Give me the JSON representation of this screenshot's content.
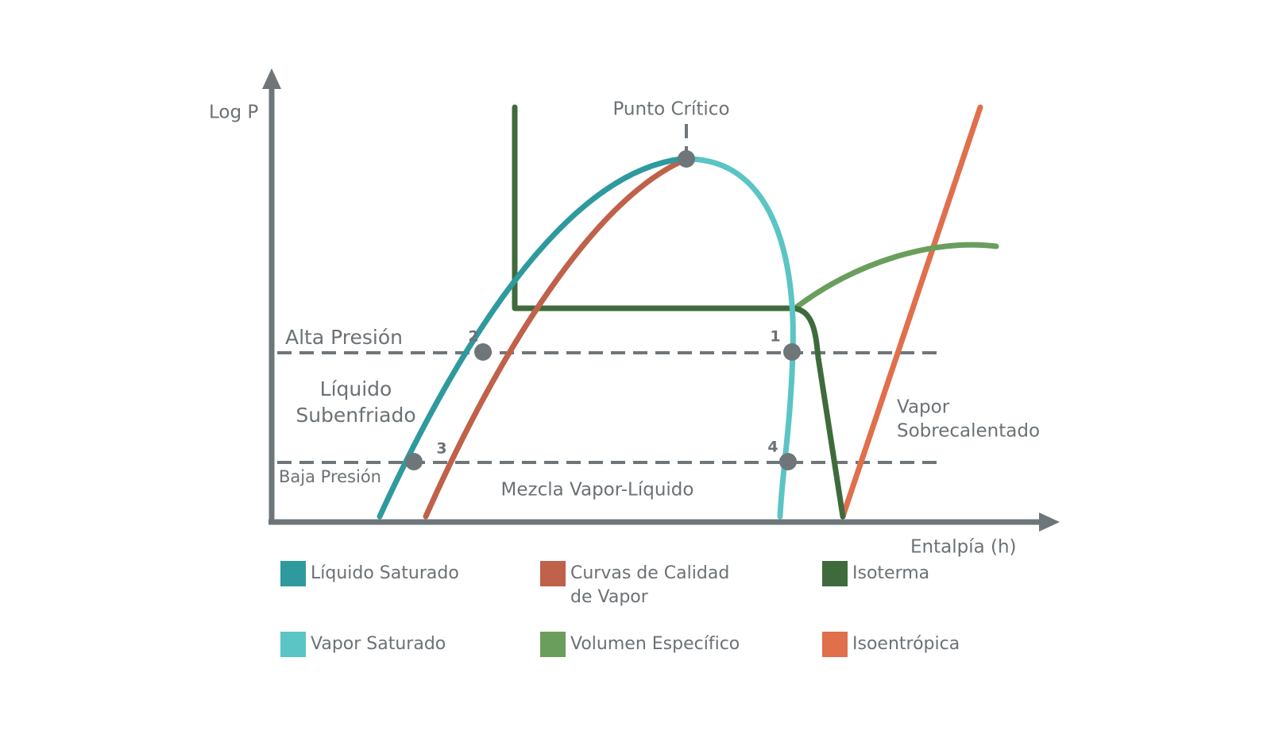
{
  "axes": {
    "y_label": "Log P",
    "x_label": "Entalpía (h)"
  },
  "annotations": {
    "critical_point": "Punto Crítico",
    "high_pressure": "Alta Presión",
    "low_pressure": "Baja Presión",
    "subcooled_liquid": [
      "Líquido",
      "Subenfriado"
    ],
    "mixture": "Mezcla Vapor-Líquido",
    "superheated_vapor": [
      "Vapor",
      "Sobrecalentado"
    ]
  },
  "points": [
    "1",
    "2",
    "3",
    "4"
  ],
  "legend": [
    {
      "label": [
        "Líquido Saturado"
      ],
      "color": "#2e9a9e"
    },
    {
      "label": [
        "Curvas de Calidad",
        "de Vapor"
      ],
      "color": "#c0614a"
    },
    {
      "label": [
        "Isoterma"
      ],
      "color": "#3f6b3c"
    },
    {
      "label": [
        "Vapor Saturado"
      ],
      "color": "#5bc4c4"
    },
    {
      "label": [
        "Volumen Específico"
      ],
      "color": "#6a9e5c"
    },
    {
      "label": [
        "Isoentrópica"
      ],
      "color": "#e06f4c"
    }
  ]
}
